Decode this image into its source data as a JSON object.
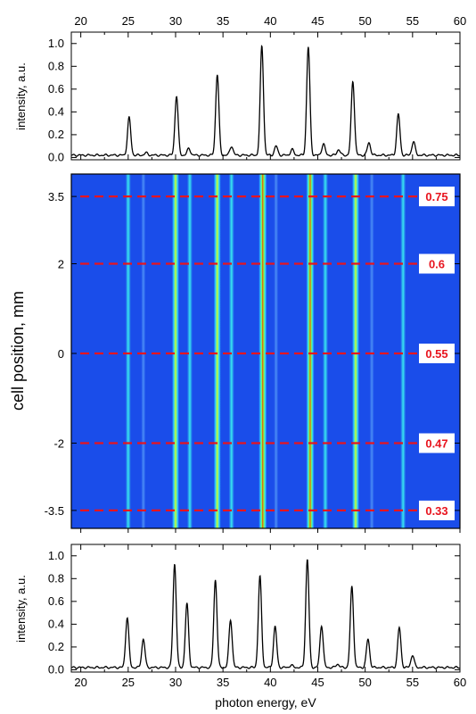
{
  "chart_data": [
    {
      "type": "line",
      "id": "top-spectrum",
      "xlabel_top": "",
      "ylabel": "intensity, a.u.",
      "xlim": [
        19,
        60
      ],
      "ylim": [
        -0.02,
        1.1
      ],
      "xticks": [
        20,
        25,
        30,
        35,
        40,
        45,
        50,
        55,
        60
      ],
      "yticks": [
        0.0,
        0.2,
        0.4,
        0.6,
        0.8,
        1.0
      ],
      "ytick_labels": [
        "0.0",
        "0.2",
        "0.4",
        "0.6",
        "0.8",
        "1.0"
      ],
      "baseline": 0.02,
      "peaks": [
        {
          "x": 25.1,
          "y": 0.35
        },
        {
          "x": 26.9,
          "y": 0.04
        },
        {
          "x": 30.1,
          "y": 0.54
        },
        {
          "x": 31.4,
          "y": 0.08
        },
        {
          "x": 34.4,
          "y": 0.73
        },
        {
          "x": 35.9,
          "y": 0.1
        },
        {
          "x": 39.1,
          "y": 0.98
        },
        {
          "x": 40.6,
          "y": 0.1
        },
        {
          "x": 42.3,
          "y": 0.07
        },
        {
          "x": 44.0,
          "y": 0.97
        },
        {
          "x": 45.6,
          "y": 0.12
        },
        {
          "x": 47.2,
          "y": 0.07
        },
        {
          "x": 48.7,
          "y": 0.67
        },
        {
          "x": 50.4,
          "y": 0.13
        },
        {
          "x": 53.5,
          "y": 0.38
        },
        {
          "x": 55.1,
          "y": 0.14
        }
      ],
      "line_color": "#000000"
    },
    {
      "type": "heatmap",
      "id": "cell-position-map",
      "ylabel": "cell position, mm",
      "xlim": [
        19,
        60
      ],
      "ylim": [
        -3.9,
        4.0
      ],
      "yticks": [
        3.5,
        2,
        0,
        -2,
        -3.5
      ],
      "ytick_labels": [
        "3.5",
        "2",
        "0",
        "-2",
        "-3.5"
      ],
      "background_color": "#1a4dea",
      "lines": [
        {
          "x": 25.0,
          "strength": 0.45
        },
        {
          "x": 26.6,
          "strength": 0.18
        },
        {
          "x": 30.0,
          "strength": 0.6
        },
        {
          "x": 31.5,
          "strength": 0.3
        },
        {
          "x": 34.4,
          "strength": 0.75
        },
        {
          "x": 35.9,
          "strength": 0.3
        },
        {
          "x": 39.2,
          "strength": 1.0
        },
        {
          "x": 40.6,
          "strength": 0.25
        },
        {
          "x": 44.2,
          "strength": 1.0
        },
        {
          "x": 45.8,
          "strength": 0.3
        },
        {
          "x": 49.0,
          "strength": 0.7
        },
        {
          "x": 50.7,
          "strength": 0.2
        },
        {
          "x": 54.0,
          "strength": 0.45
        }
      ],
      "annotations": [
        {
          "y": 3.5,
          "label": "0.75"
        },
        {
          "y": 2,
          "label": "0.6"
        },
        {
          "y": 0,
          "label": "0.55"
        },
        {
          "y": -2,
          "label": "0.47"
        },
        {
          "y": -3.5,
          "label": "0.33"
        }
      ],
      "annotation_color": "#e8141e"
    },
    {
      "type": "line",
      "id": "bottom-spectrum",
      "xlabel": "photon energy, eV",
      "ylabel": "intensity, a.u.",
      "xlim": [
        19,
        60
      ],
      "ylim": [
        -0.02,
        1.1
      ],
      "xticks": [
        20,
        25,
        30,
        35,
        40,
        45,
        50,
        55,
        60
      ],
      "yticks": [
        0.0,
        0.2,
        0.4,
        0.6,
        0.8,
        1.0
      ],
      "ytick_labels": [
        "0.0",
        "0.2",
        "0.4",
        "0.6",
        "0.8",
        "1.0"
      ],
      "baseline": 0.02,
      "peaks": [
        {
          "x": 24.9,
          "y": 0.46
        },
        {
          "x": 26.6,
          "y": 0.27
        },
        {
          "x": 29.9,
          "y": 0.93
        },
        {
          "x": 31.2,
          "y": 0.58
        },
        {
          "x": 34.2,
          "y": 0.79
        },
        {
          "x": 35.8,
          "y": 0.44
        },
        {
          "x": 38.9,
          "y": 0.82
        },
        {
          "x": 40.5,
          "y": 0.38
        },
        {
          "x": 42.2,
          "y": 0.04
        },
        {
          "x": 43.9,
          "y": 0.97
        },
        {
          "x": 45.4,
          "y": 0.39
        },
        {
          "x": 47.1,
          "y": 0.05
        },
        {
          "x": 48.6,
          "y": 0.73
        },
        {
          "x": 50.3,
          "y": 0.27
        },
        {
          "x": 53.6,
          "y": 0.37
        },
        {
          "x": 55.0,
          "y": 0.13
        },
        {
          "x": 58.3,
          "y": 0.02
        }
      ],
      "line_color": "#000000"
    }
  ]
}
